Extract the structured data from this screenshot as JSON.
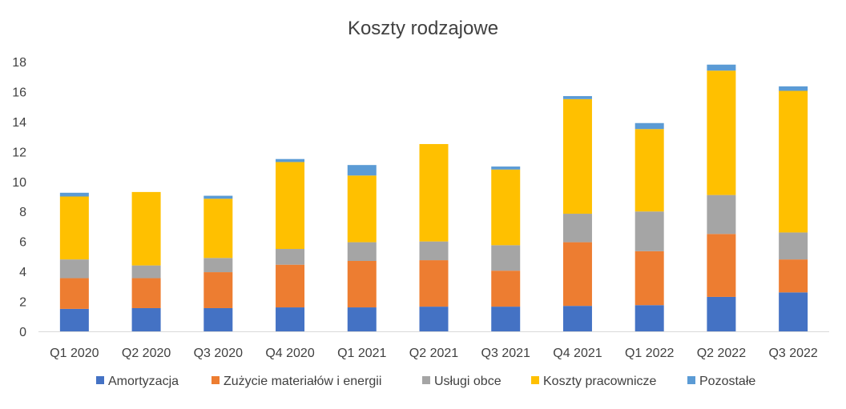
{
  "chart_data": {
    "type": "bar",
    "stacked": true,
    "title": "Koszty rodzajowe",
    "xlabel": "",
    "ylabel": "",
    "categories": [
      "Q1 2020",
      "Q2 2020",
      "Q3 2020",
      "Q4 2020",
      "Q1 2021",
      "Q2 2021",
      "Q3 2021",
      "Q4 2021",
      "Q1 2022",
      "Q2 2022",
      "Q3 2022"
    ],
    "ylim": [
      0,
      18
    ],
    "yticks": [
      "0",
      "2",
      "4",
      "6",
      "8",
      "10",
      "12",
      "14",
      "16",
      "18"
    ],
    "legend_position": "bottom",
    "grid": false,
    "series": [
      {
        "name": "Amortyzacja",
        "color": "#4472C4",
        "values": [
          1.5,
          1.55,
          1.55,
          1.6,
          1.6,
          1.65,
          1.65,
          1.7,
          1.75,
          2.3,
          2.6
        ]
      },
      {
        "name": "Zużycie materiałów i energii",
        "color": "#ED7D31",
        "values": [
          2.05,
          2.0,
          2.4,
          2.85,
          3.1,
          3.1,
          2.4,
          4.25,
          3.6,
          4.2,
          2.2
        ]
      },
      {
        "name": "Usługi obce",
        "color": "#A5A5A5",
        "values": [
          1.25,
          0.85,
          0.95,
          1.05,
          1.25,
          1.25,
          1.7,
          1.9,
          2.65,
          2.6,
          1.8
        ]
      },
      {
        "name": "Koszty pracownicze",
        "color": "#FFC000",
        "values": [
          4.2,
          4.9,
          3.95,
          5.8,
          4.45,
          6.5,
          5.05,
          7.65,
          5.5,
          8.3,
          9.45
        ]
      },
      {
        "name": "Pozostałe",
        "color": "#5B9BD5",
        "values": [
          0.25,
          0.0,
          0.2,
          0.2,
          0.7,
          0.0,
          0.2,
          0.2,
          0.4,
          0.4,
          0.3
        ]
      }
    ]
  }
}
